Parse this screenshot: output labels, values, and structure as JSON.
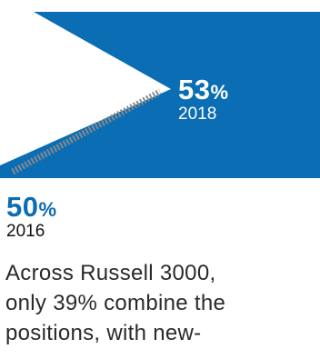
{
  "colors": {
    "brand_blue": "#0b6db3",
    "connector_gray": "#8a8a8a",
    "text_dark": "#2a2a2a"
  },
  "stat_2018": {
    "value": "53",
    "unit": "%",
    "year": "2018"
  },
  "stat_2016": {
    "value": "50",
    "unit": "%",
    "year": "2016"
  },
  "caption": {
    "lines": [
      "Across Russell 3000,",
      "only 39% combine the",
      "positions, with new-"
    ]
  }
}
